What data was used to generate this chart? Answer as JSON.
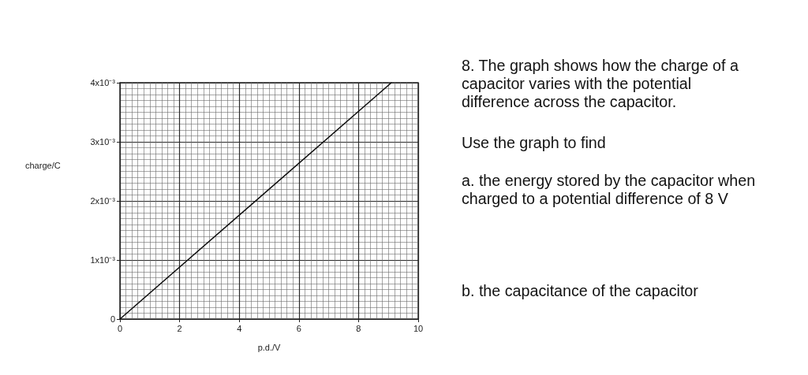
{
  "chart_data": {
    "type": "line",
    "xlabel": "p.d./V",
    "ylabel": "charge/C",
    "series": [
      {
        "x": [
          0,
          9.1
        ],
        "values": [
          0,
          0.004
        ],
        "color": "#111111"
      }
    ],
    "xlim": [
      0,
      10
    ],
    "ylim": [
      0,
      0.004
    ],
    "xticks": [
      0,
      2,
      4,
      6,
      8,
      10
    ],
    "yticks": [
      0,
      {
        "value": 0.001,
        "label": "1x10⁻³"
      },
      {
        "value": 0.002,
        "label": "2x10⁻³"
      },
      {
        "value": 0.003,
        "label": "3x10⁻³"
      },
      {
        "value": 0.004,
        "label": "4x10⁻³"
      }
    ],
    "grid": true,
    "marker": "none",
    "annotations": [
      "8. The graph shows how the charge of a capacitor varies with the potential difference across the capacitor.",
      "Use the graph to find",
      "a. the energy stored by the capacitor when charged to a potential difference of 8 V",
      "b. the capacitance of the capacitor"
    ]
  }
}
